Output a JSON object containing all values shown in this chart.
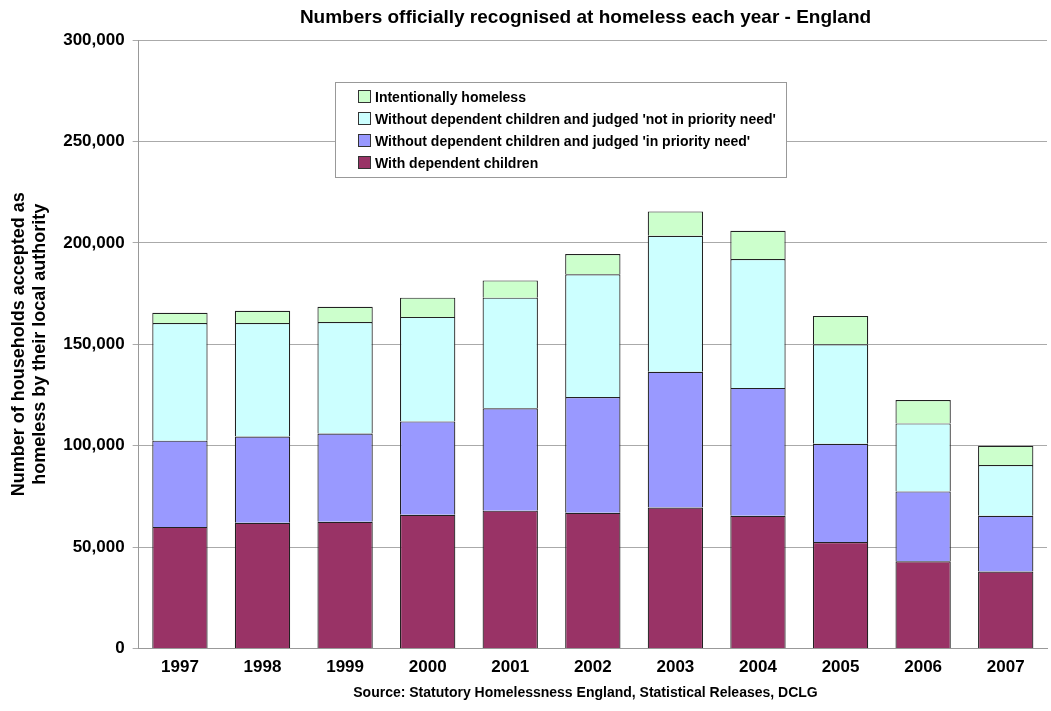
{
  "chart_data": {
    "type": "bar",
    "stacked": true,
    "title": "Numbers officially recognised at homeless each year - England",
    "ylabel": "Number of households accepted as homeless by their local authority",
    "annotations": [
      "Source: Statutory Homelessness England, Statistical Releases, DCLG"
    ],
    "categories": [
      "1997",
      "1998",
      "1999",
      "2000",
      "2001",
      "2002",
      "2003",
      "2004",
      "2005",
      "2006",
      "2007"
    ],
    "series": [
      {
        "name": "With dependent children",
        "color": "#993366",
        "values": [
          60000,
          62000,
          62500,
          66000,
          68000,
          67000,
          69500,
          65500,
          52500,
          43000,
          38000
        ]
      },
      {
        "name": "Without dependent children and judged 'in priority need'",
        "color": "#9999ff",
        "values": [
          42500,
          42500,
          43500,
          46000,
          50500,
          57000,
          67000,
          63000,
          48500,
          34500,
          27500
        ]
      },
      {
        "name": "Without dependent children and judged 'not in priority need'",
        "color": "#ccffff",
        "values": [
          58000,
          56000,
          55000,
          51500,
          54500,
          60500,
          67000,
          63500,
          49000,
          33500,
          25000
        ]
      },
      {
        "name": "Intentionally homeless",
        "color": "#ccffcc",
        "values": [
          5000,
          6000,
          7500,
          9500,
          8500,
          10000,
          12000,
          14000,
          14000,
          11500,
          9500
        ]
      }
    ],
    "ylim": [
      0,
      300000
    ],
    "yticks": [
      0,
      {
        "value": 50000,
        "label": "50,000"
      },
      {
        "value": 100000,
        "label": "100,000"
      },
      {
        "value": 150000,
        "label": "150,000"
      },
      {
        "value": 200000,
        "label": "200,000"
      },
      {
        "value": 250000,
        "label": "250,000"
      },
      {
        "value": 300000,
        "label": "300,000"
      }
    ],
    "grid": "y",
    "legend": "top"
  }
}
